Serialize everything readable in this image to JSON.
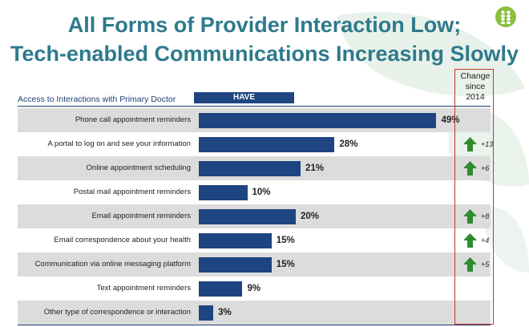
{
  "title": {
    "line1": "All Forms of Provider Interaction Low;",
    "line2": "Tech-enabled Communications Increasing Slowly"
  },
  "subheading": "Access to Interactions with Primary Doctor",
  "have_label": "HAVE",
  "change_header": [
    "Change",
    "since",
    "2014"
  ],
  "colors": {
    "title": "#2e7a8c",
    "bar": "#1e4581",
    "arrow": "#2e8b2e",
    "change_box": "#c0392b",
    "row_shade": "#dcdcdc",
    "logo": "#8dbf3f"
  },
  "icons": {
    "logo": "people-logo-icon",
    "arrow": "up-arrow-icon"
  },
  "chart_data": {
    "type": "bar",
    "orientation": "horizontal",
    "categories": [
      "Phone call appointment reminders",
      "A portal to log on and see your information",
      "Online appointment scheduling",
      "Postal mail appointment reminders",
      "Email appointment reminders",
      "Email correspondence about your health",
      "Communication via  online  messaging platform",
      "Text appointment reminders",
      "Other type of correspondence or interaction"
    ],
    "values": [
      49,
      28,
      21,
      10,
      20,
      15,
      15,
      9,
      3
    ],
    "value_labels": [
      "49%",
      "28%",
      "21%",
      "10%",
      "20%",
      "15%",
      "15%",
      "9%",
      "3%"
    ],
    "change_since_2014": [
      "",
      "+13",
      "+6",
      "",
      "+8",
      "+4",
      "+5",
      "",
      ""
    ],
    "xlim": [
      0,
      55
    ]
  }
}
